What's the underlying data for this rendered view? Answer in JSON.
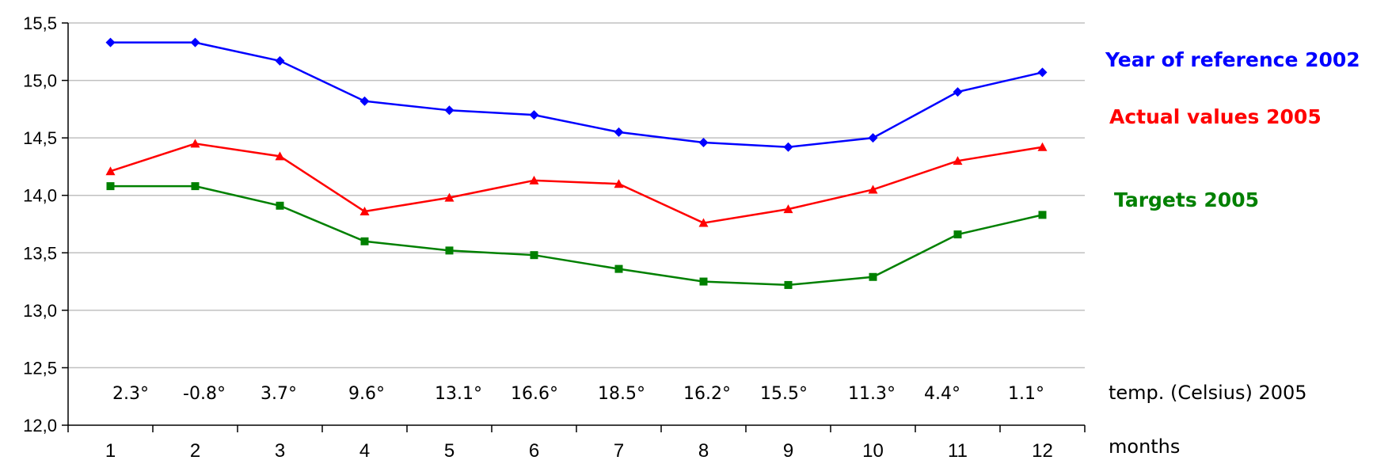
{
  "chart_data": {
    "type": "line",
    "categories": [
      "1",
      "2",
      "3",
      "4",
      "5",
      "6",
      "7",
      "8",
      "9",
      "10",
      "11",
      "12"
    ],
    "xlabel": "months",
    "ylabel": "",
    "ylim": [
      12.0,
      15.5
    ],
    "yticks": [
      "12,0",
      "12,5",
      "13,0",
      "13,5",
      "14,0",
      "14,5",
      "15,0",
      "15,5"
    ],
    "grid": true,
    "legend": "right",
    "series": [
      {
        "name": "Year of reference 2002",
        "color": "#0000ff",
        "marker": "diamond",
        "values": [
          15.33,
          15.33,
          15.17,
          14.82,
          14.74,
          14.7,
          14.55,
          14.46,
          14.42,
          14.5,
          14.9,
          15.07
        ]
      },
      {
        "name": "Actual values 2005",
        "color": "#ff0000",
        "marker": "triangle",
        "values": [
          14.21,
          14.45,
          14.34,
          13.86,
          13.98,
          14.13,
          14.1,
          13.76,
          13.88,
          14.05,
          14.3,
          14.42
        ]
      },
      {
        "name": "Targets 2005",
        "color": "#008000",
        "marker": "square",
        "values": [
          14.08,
          14.08,
          13.91,
          13.6,
          13.52,
          13.48,
          13.36,
          13.25,
          13.22,
          13.29,
          13.66,
          13.83
        ]
      }
    ],
    "temperature_label": "temp. (Celsius) 2005",
    "temperatures": [
      "2.3°",
      "-0.8°",
      "3.7°",
      "9.6°",
      "13.1°",
      "16.6°",
      "18.5°",
      "16.2°",
      "15.5°",
      "11.3°",
      "4.4°",
      "1.1°"
    ]
  }
}
